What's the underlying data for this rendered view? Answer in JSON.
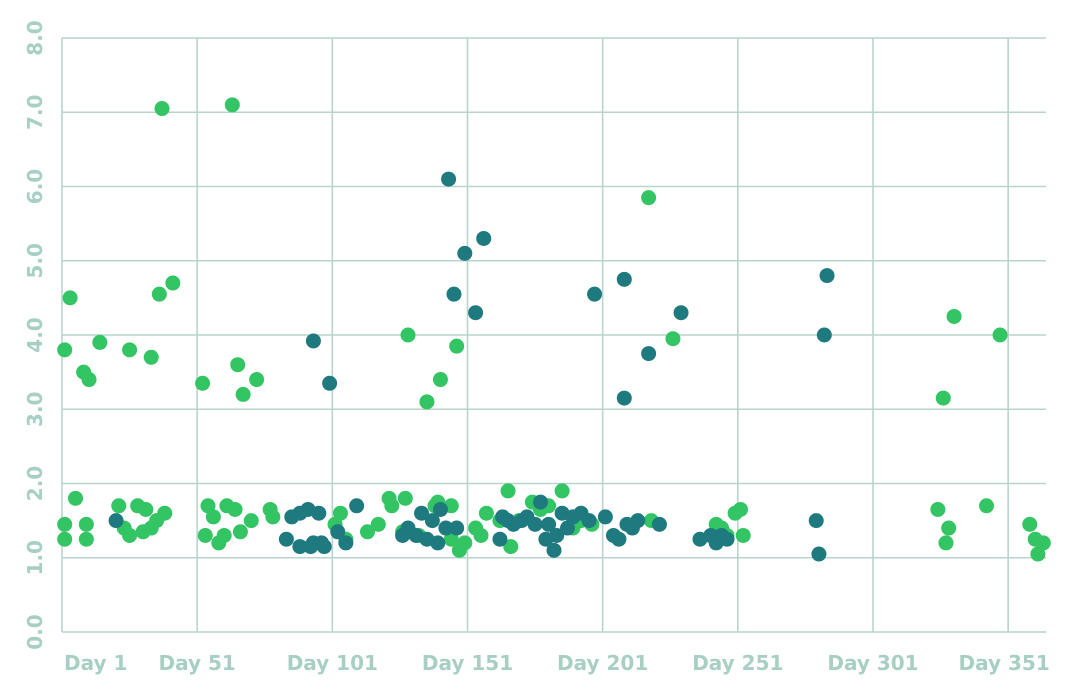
{
  "chart_data": {
    "type": "scatter",
    "title": "",
    "xlabel": "",
    "ylabel": "",
    "x_tick_labels": [
      "Day 1",
      "Day 51",
      "Day 101",
      "Day 151",
      "Day 201",
      "Day 251",
      "Day 301",
      "Day 351"
    ],
    "x_tick_values": [
      1,
      51,
      101,
      151,
      201,
      251,
      301,
      351
    ],
    "xlim": [
      1,
      365
    ],
    "y_tick_labels": [
      "0.0",
      "1.0",
      "2.0",
      "3.0",
      "4.0",
      "5.0",
      "6.0",
      "7.0",
      "8.0"
    ],
    "y_tick_values": [
      0,
      1,
      2,
      3,
      4,
      5,
      6,
      7,
      8
    ],
    "ylim": [
      0,
      8
    ],
    "grid": true,
    "legend": "none",
    "colors": {
      "series_a": "#33c463",
      "series_b": "#1f7a7f",
      "grid": "#b8d4cc",
      "tick_label": "#a8cfc4"
    },
    "series": [
      {
        "color": "#33c463",
        "points": [
          [
            2,
            3.8
          ],
          [
            4,
            4.5
          ],
          [
            6,
            1.8
          ],
          [
            2,
            1.45
          ],
          [
            2,
            1.25
          ],
          [
            10,
            1.45
          ],
          [
            10,
            1.25
          ],
          [
            9,
            3.5
          ],
          [
            11,
            3.4
          ],
          [
            15,
            3.9
          ],
          [
            22,
            1.7
          ],
          [
            26,
            3.8
          ],
          [
            24,
            1.4
          ],
          [
            26,
            1.3
          ],
          [
            29,
            1.7
          ],
          [
            31,
            1.35
          ],
          [
            32,
            1.65
          ],
          [
            34,
            3.7
          ],
          [
            34,
            1.4
          ],
          [
            37,
            4.55
          ],
          [
            38,
            7.05
          ],
          [
            36,
            1.5
          ],
          [
            39,
            1.6
          ],
          [
            42,
            4.7
          ],
          [
            53,
            3.35
          ],
          [
            54,
            1.3
          ],
          [
            55,
            1.7
          ],
          [
            57,
            1.55
          ],
          [
            59,
            1.2
          ],
          [
            61,
            1.3
          ],
          [
            62,
            1.7
          ],
          [
            64,
            7.1
          ],
          [
            65,
            1.65
          ],
          [
            66,
            3.6
          ],
          [
            67,
            1.35
          ],
          [
            68,
            3.2
          ],
          [
            71,
            1.5
          ],
          [
            73,
            3.4
          ],
          [
            78,
            1.65
          ],
          [
            79,
            1.55
          ],
          [
            102,
            1.45
          ],
          [
            104,
            1.6
          ],
          [
            106,
            1.25
          ],
          [
            114,
            1.35
          ],
          [
            118,
            1.45
          ],
          [
            122,
            1.8
          ],
          [
            123,
            1.7
          ],
          [
            128,
            1.8
          ],
          [
            129,
            4.0
          ],
          [
            127,
            1.35
          ],
          [
            133,
            1.3
          ],
          [
            136,
            3.1
          ],
          [
            139,
            1.7
          ],
          [
            140,
            1.75
          ],
          [
            141,
            3.4
          ],
          [
            145,
            1.7
          ],
          [
            147,
            3.85
          ],
          [
            148,
            1.1
          ],
          [
            150,
            1.2
          ],
          [
            145,
            1.25
          ],
          [
            154,
            1.4
          ],
          [
            156,
            1.3
          ],
          [
            158,
            1.6
          ],
          [
            163,
            1.5
          ],
          [
            166,
            1.9
          ],
          [
            167,
            1.15
          ],
          [
            170,
            1.5
          ],
          [
            175,
            1.75
          ],
          [
            178,
            1.65
          ],
          [
            181,
            1.7
          ],
          [
            186,
            1.9
          ],
          [
            190,
            1.4
          ],
          [
            193,
            1.5
          ],
          [
            197,
            1.45
          ],
          [
            218,
            5.85
          ],
          [
            219,
            1.5
          ],
          [
            227,
            3.95
          ],
          [
            243,
            1.45
          ],
          [
            245,
            1.4
          ],
          [
            247,
            1.3
          ],
          [
            250,
            1.6
          ],
          [
            252,
            1.65
          ],
          [
            253,
            1.3
          ],
          [
            325,
            1.65
          ],
          [
            327,
            3.15
          ],
          [
            328,
            1.2
          ],
          [
            329,
            1.4
          ],
          [
            331,
            4.25
          ],
          [
            343,
            1.7
          ],
          [
            348,
            4.0
          ],
          [
            359,
            1.45
          ],
          [
            361,
            1.25
          ],
          [
            362,
            1.05
          ],
          [
            364,
            1.2
          ]
        ]
      },
      {
        "color": "#1f7a7f",
        "points": [
          [
            21,
            1.5
          ],
          [
            84,
            1.25
          ],
          [
            86,
            1.55
          ],
          [
            89,
            1.6
          ],
          [
            89,
            1.15
          ],
          [
            92,
            1.65
          ],
          [
            93,
            1.15
          ],
          [
            94,
            3.92
          ],
          [
            94,
            1.2
          ],
          [
            96,
            1.6
          ],
          [
            97,
            1.2
          ],
          [
            98,
            1.15
          ],
          [
            100,
            3.35
          ],
          [
            103,
            1.35
          ],
          [
            106,
            1.2
          ],
          [
            110,
            1.7
          ],
          [
            127,
            1.3
          ],
          [
            129,
            1.4
          ],
          [
            132,
            1.3
          ],
          [
            134,
            1.6
          ],
          [
            136,
            1.25
          ],
          [
            138,
            1.5
          ],
          [
            140,
            1.2
          ],
          [
            141,
            1.65
          ],
          [
            143,
            1.4
          ],
          [
            144,
            6.1
          ],
          [
            146,
            4.55
          ],
          [
            147,
            1.4
          ],
          [
            150,
            5.1
          ],
          [
            154,
            4.3
          ],
          [
            157,
            5.3
          ],
          [
            163,
            1.25
          ],
          [
            164,
            1.55
          ],
          [
            166,
            1.5
          ],
          [
            168,
            1.45
          ],
          [
            171,
            1.5
          ],
          [
            173,
            1.55
          ],
          [
            176,
            1.45
          ],
          [
            178,
            1.75
          ],
          [
            180,
            1.25
          ],
          [
            181,
            1.45
          ],
          [
            183,
            1.1
          ],
          [
            184,
            1.3
          ],
          [
            186,
            1.6
          ],
          [
            188,
            1.4
          ],
          [
            190,
            1.55
          ],
          [
            193,
            1.6
          ],
          [
            196,
            1.5
          ],
          [
            198,
            4.55
          ],
          [
            202,
            1.55
          ],
          [
            205,
            1.3
          ],
          [
            207,
            1.25
          ],
          [
            209,
            4.75
          ],
          [
            209,
            3.15
          ],
          [
            210,
            1.45
          ],
          [
            212,
            1.4
          ],
          [
            214,
            1.5
          ],
          [
            218,
            3.75
          ],
          [
            222,
            1.45
          ],
          [
            230,
            4.3
          ],
          [
            237,
            1.25
          ],
          [
            241,
            1.3
          ],
          [
            243,
            1.2
          ],
          [
            245,
            1.3
          ],
          [
            247,
            1.25
          ],
          [
            280,
            1.5
          ],
          [
            281,
            1.05
          ],
          [
            283,
            4.0
          ],
          [
            284,
            4.8
          ]
        ]
      }
    ]
  }
}
